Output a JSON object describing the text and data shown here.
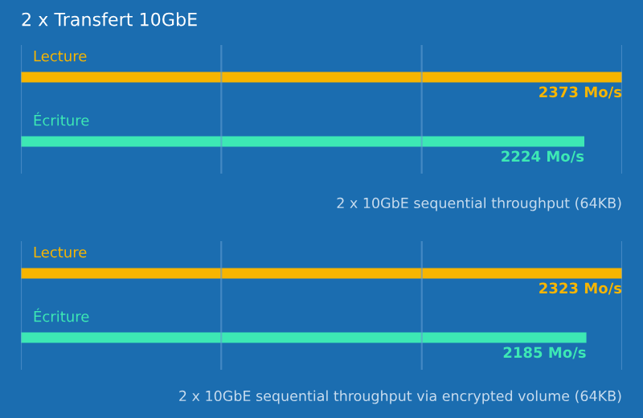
{
  "chart_data": [
    {
      "type": "bar",
      "orientation": "horizontal",
      "xlim": [
        0,
        2373
      ],
      "xticks": [
        {
          "value": 0,
          "label": null
        },
        {
          "value": 791,
          "label": null
        },
        {
          "value": 1582,
          "label": null
        },
        {
          "value": 2373,
          "label": null
        }
      ],
      "title": "2 x Transfert 10GbE",
      "categories": [
        "Lecture",
        "Écriture"
      ],
      "values": [
        2373,
        2224
      ],
      "colors": [
        "#f7b500",
        "#3de8b4"
      ],
      "value_labels": [
        "2373 Mo/s",
        "2224 Mo/s"
      ],
      "grid": "x",
      "legend": false,
      "annotations": [
        "2 x 10GbE sequential throughput (64KB)"
      ]
    },
    {
      "type": "bar",
      "orientation": "horizontal",
      "xlim": [
        0,
        2323
      ],
      "xticks": [
        {
          "value": 0,
          "label": null
        },
        {
          "value": 774,
          "label": null
        },
        {
          "value": 1549,
          "label": null
        },
        {
          "value": 2323,
          "label": null
        }
      ],
      "categories": [
        "Lecture",
        "Écriture"
      ],
      "values": [
        2323,
        2185
      ],
      "colors": [
        "#f7b500",
        "#3de8b4"
      ],
      "value_labels": [
        "2323 Mo/s",
        "2185 Mo/s"
      ],
      "grid": "x",
      "legend": false,
      "annotations": [
        "2 x 10GbE sequential throughput via encrypted volume (64KB)"
      ]
    }
  ]
}
